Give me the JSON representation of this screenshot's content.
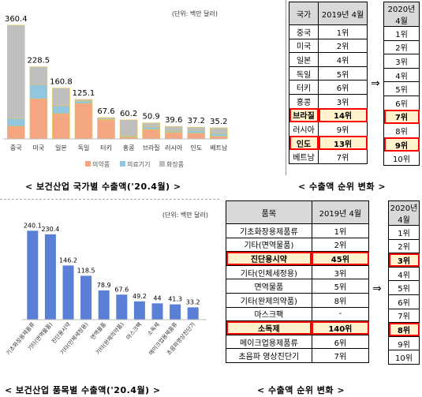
{
  "charts_top": {
    "unit": "(단위: 백만 달러)",
    "caption": "< 보건산업 국가별 수출액('20.4월) >"
  },
  "charts_bottom": {
    "unit": "(단위: 백만 달러)",
    "caption": "< 보건산업 품목별 수출액('20.4월) >"
  },
  "rank_top": {
    "caption": "< 수출액 순위 변화 >",
    "header": [
      "국가",
      "2019년 4월",
      "2020년 4월"
    ],
    "rows": [
      {
        "name": "중국",
        "r2019": "1위",
        "r2020": "1위",
        "hl": false
      },
      {
        "name": "미국",
        "r2019": "2위",
        "r2020": "2위",
        "hl": false
      },
      {
        "name": "일본",
        "r2019": "4위",
        "r2020": "3위",
        "hl": false
      },
      {
        "name": "독일",
        "r2019": "5위",
        "r2020": "4위",
        "hl": false
      },
      {
        "name": "터키",
        "r2019": "6위",
        "r2020": "5위",
        "hl": false
      },
      {
        "name": "홍콩",
        "r2019": "3위",
        "r2020": "6위",
        "hl": false
      },
      {
        "name": "브라질",
        "r2019": "14위",
        "r2020": "7위",
        "hl": true
      },
      {
        "name": "러시아",
        "r2019": "9위",
        "r2020": "8위",
        "hl": false
      },
      {
        "name": "인도",
        "r2019": "13위",
        "r2020": "9위",
        "hl": true
      },
      {
        "name": "베트남",
        "r2019": "7위",
        "r2020": "10위",
        "hl": false
      }
    ]
  },
  "rank_bottom": {
    "caption": "< 수출액 순위 변화 >",
    "header": [
      "품목",
      "2019년 4월",
      "2020년 4월"
    ],
    "rows": [
      {
        "name": "기초화장용제품류",
        "r2019": "1위",
        "r2020": "1위",
        "hl": false
      },
      {
        "name": "기타(면역물품)",
        "r2019": "2위",
        "r2020": "2위",
        "hl": false
      },
      {
        "name": "진단용시약",
        "r2019": "45위",
        "r2020": "3위",
        "hl": true
      },
      {
        "name": "기타(인체세정용)",
        "r2019": "3위",
        "r2020": "4위",
        "hl": false
      },
      {
        "name": "면역물품",
        "r2019": "5위",
        "r2020": "5위",
        "hl": false
      },
      {
        "name": "기타(완제의약품)",
        "r2019": "8위",
        "r2020": "6위",
        "hl": false
      },
      {
        "name": "마스크팩",
        "r2019": "-",
        "r2020": "7위",
        "hl": false
      },
      {
        "name": "소독제",
        "r2019": "140위",
        "r2020": "8위",
        "hl": true
      },
      {
        "name": "메이크업용제품류",
        "r2019": "6위",
        "r2020": "9위",
        "hl": false
      },
      {
        "name": "초음파 영상진단기",
        "r2019": "7위",
        "r2020": "10위",
        "hl": false
      }
    ]
  },
  "chart_data": [
    {
      "type": "bar",
      "stacked": true,
      "categories": [
        "중국",
        "미국",
        "일본",
        "독일",
        "터키",
        "홍콩",
        "브라질",
        "러시아",
        "인도",
        "베트남"
      ],
      "totals": [
        360.4,
        228.5,
        160.8,
        125.1,
        67.6,
        60.2,
        50.9,
        39.6,
        37.2,
        35.2
      ],
      "series": [
        {
          "name": "의약품",
          "color": "#f4a582",
          "values": [
            40,
            127,
            80,
            112,
            60,
            6,
            30,
            20,
            18,
            8
          ]
        },
        {
          "name": "의료기기",
          "color": "#92c5de",
          "values": [
            25,
            45,
            25,
            8,
            2,
            4,
            8,
            5,
            9,
            9
          ]
        },
        {
          "name": "화장품",
          "color": "#bfbfbf",
          "values": [
            295.4,
            56.5,
            55.8,
            5.1,
            5.6,
            50.2,
            12.9,
            14.6,
            10.2,
            18.2
          ]
        }
      ],
      "ylim": [
        0,
        380
      ],
      "legend": "bottom"
    },
    {
      "type": "bar",
      "categories": [
        "기초화장용제품류",
        "기타(면역물품)",
        "진단용시약",
        "기타(인체세정용)",
        "면역물품",
        "기타(완제의약품)",
        "마스크팩",
        "소독제",
        "메이크업용제품류",
        "초음파영상진단기"
      ],
      "values": [
        240.1,
        230.4,
        146.2,
        118.5,
        78.9,
        67.6,
        49.2,
        44.0,
        41.3,
        33.2
      ],
      "color": "#5b7fd6",
      "ylim": [
        0,
        260
      ]
    }
  ]
}
